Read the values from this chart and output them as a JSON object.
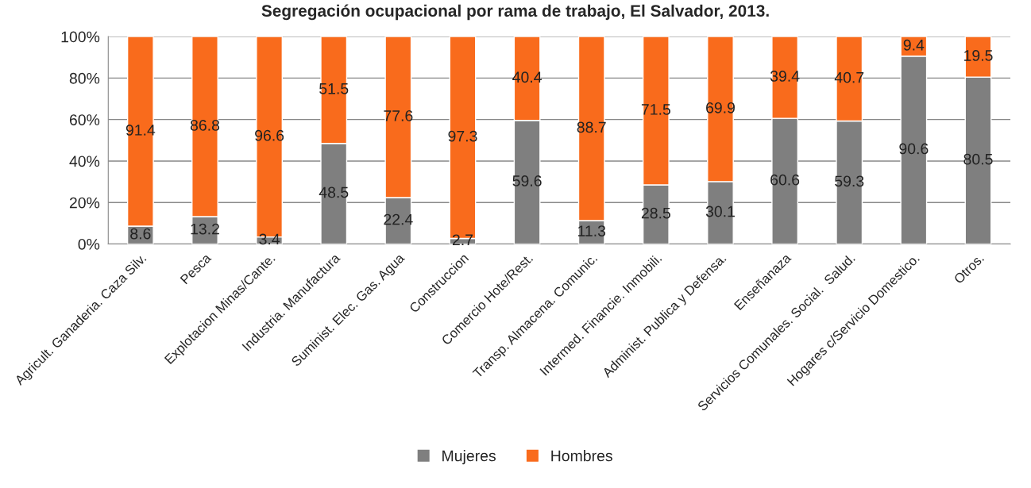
{
  "chart_data": {
    "type": "bar",
    "stacked": true,
    "title": "Segregación ocupacional por rama de trabajo, El Salvador, 2013.",
    "categories": [
      "Agricult. Ganaderia. Caza Silv.",
      "Pesca",
      "Explotacion Minas/Cante.",
      "Industria. Manufactura",
      "Suminist. Elec. Gas. Agua",
      "Construccion",
      "Comercio Hote/Rest.",
      "Transp. Almacena. Comunic.",
      "Intermed. Financie. Inmobili.",
      "Administ. Publica y Defensa.",
      "Enseñanaza",
      "Servicios Comunales. Social.  Salud.",
      "Hogares c/Servicio Domestico.",
      "Otros."
    ],
    "series": [
      {
        "name": "Mujeres",
        "color": "#7f7f7f",
        "values": [
          8.6,
          13.2,
          3.4,
          48.5,
          22.4,
          2.7,
          59.6,
          11.3,
          28.5,
          30.1,
          60.6,
          59.3,
          90.6,
          80.5
        ]
      },
      {
        "name": "Hombres",
        "color": "#f96b1c",
        "values": [
          91.4,
          86.8,
          96.6,
          51.5,
          77.6,
          97.3,
          40.4,
          88.7,
          71.5,
          69.9,
          39.4,
          40.7,
          9.4,
          19.5
        ]
      }
    ],
    "ylim": [
      0,
      100
    ],
    "yticks": [
      {
        "value": 0,
        "label": "0%"
      },
      {
        "value": 20,
        "label": "20%"
      },
      {
        "value": 40,
        "label": "40%"
      },
      {
        "value": 60,
        "label": "60%"
      },
      {
        "value": 80,
        "label": "80%"
      },
      {
        "value": 100,
        "label": "100%"
      }
    ],
    "grid": "y",
    "legend": "bottom",
    "data_labels": true
  }
}
